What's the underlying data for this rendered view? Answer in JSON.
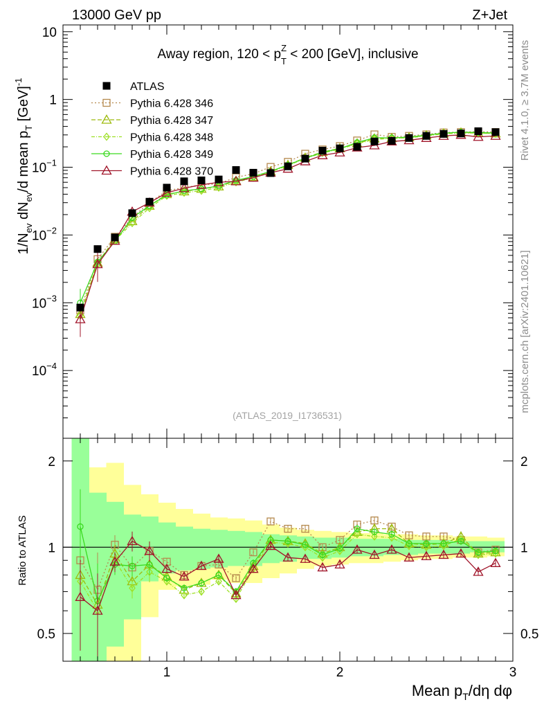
{
  "header": {
    "beam": "13000 GeV pp",
    "process": "Z+Jet",
    "analysis_id": "(ATLAS_2019_I1736531)",
    "rivet_label": "Rivet 4.1.0, ≥ 3.7M events",
    "site_label": "mcplots.cern.ch [arXiv:2401.10621]"
  },
  "chart_data": [
    {
      "id": "main",
      "type": "scatter",
      "title_parts": [
        "Away region, 120 < p",
        "Z",
        "T",
        " < 200 [GeV], inclusive"
      ],
      "ylabel_parts": [
        "1/N",
        "ev",
        " dN",
        "ev",
        "/d mean p",
        "T",
        " [GeV]",
        "-1"
      ],
      "xlim": [
        0.4,
        3.0
      ],
      "ylim_log10": [
        -5,
        1.1
      ],
      "yscale": "log",
      "y_ticks": [
        {
          "exp": 1,
          "label": "10"
        },
        {
          "exp": 0,
          "label": "1"
        },
        {
          "exp": -1,
          "base": "10",
          "sup": "−1"
        },
        {
          "exp": -2,
          "base": "10",
          "sup": "−2"
        },
        {
          "exp": -3,
          "base": "10",
          "sup": "−3"
        },
        {
          "exp": -4,
          "base": "10",
          "sup": "−4"
        }
      ],
      "legend_position": "top-left",
      "reference": {
        "name": "ATLAS",
        "color": "#000000",
        "x": [
          0.5,
          0.6,
          0.7,
          0.8,
          0.9,
          1.0,
          1.1,
          1.2,
          1.3,
          1.4,
          1.5,
          1.6,
          1.7,
          1.8,
          1.9,
          2.0,
          2.1,
          2.2,
          2.3,
          2.4,
          2.5,
          2.6,
          2.7,
          2.8,
          2.9
        ],
        "y": [
          0.00085,
          0.0062,
          0.0092,
          0.021,
          0.031,
          0.05,
          0.062,
          0.064,
          0.066,
          0.091,
          0.083,
          0.082,
          0.103,
          0.134,
          0.176,
          0.19,
          0.2,
          0.24,
          0.245,
          0.27,
          0.29,
          0.31,
          0.315,
          0.34,
          0.33
        ]
      },
      "series": [
        {
          "name": "Pythia 6.428 346",
          "color": "#b5894d",
          "marker": "square-open",
          "dash": "2,3",
          "values": [
            0.00077,
            0.0044,
            0.0094,
            0.018,
            0.03,
            0.045,
            0.05,
            0.055,
            0.057,
            0.071,
            0.08,
            0.101,
            0.12,
            0.158,
            0.183,
            0.205,
            0.248,
            0.305,
            0.28,
            0.29,
            0.305,
            0.325,
            0.33,
            0.335,
            0.33
          ]
        },
        {
          "name": "Pythia 6.428 347",
          "color": "#9dbb0e",
          "marker": "triangle-open",
          "dash": "6,3",
          "values": [
            0.00068,
            0.0039,
            0.0087,
            0.016,
            0.027,
            0.04,
            0.044,
            0.048,
            0.052,
            0.063,
            0.072,
            0.087,
            0.108,
            0.138,
            0.168,
            0.19,
            0.225,
            0.265,
            0.268,
            0.275,
            0.295,
            0.315,
            0.325,
            0.32,
            0.315
          ]
        },
        {
          "name": "Pythia 6.428 348",
          "color": "#9de024",
          "marker": "diamond-open",
          "dash": "5,2,1,2",
          "values": [
            0.00065,
            0.0037,
            0.0083,
            0.015,
            0.025,
            0.038,
            0.042,
            0.045,
            0.05,
            0.06,
            0.07,
            0.085,
            0.106,
            0.135,
            0.162,
            0.185,
            0.222,
            0.258,
            0.265,
            0.272,
            0.29,
            0.31,
            0.32,
            0.318,
            0.312
          ]
        },
        {
          "name": "Pythia 6.428 349",
          "color": "#3ada1f",
          "marker": "circle-open",
          "dash": "",
          "values": [
            0.001,
            0.004,
            0.008,
            0.018,
            0.027,
            0.039,
            0.045,
            0.048,
            0.053,
            0.064,
            0.073,
            0.087,
            0.108,
            0.136,
            0.166,
            0.188,
            0.232,
            0.272,
            0.272,
            0.278,
            0.298,
            0.318,
            0.33,
            0.325,
            0.32
          ]
        },
        {
          "name": "Pythia 6.428 370",
          "color": "#a0152a",
          "marker": "triangle-open",
          "dash": "",
          "values": [
            0.00057,
            0.0037,
            0.0082,
            0.022,
            0.03,
            0.042,
            0.049,
            0.055,
            0.06,
            0.062,
            0.07,
            0.083,
            0.095,
            0.122,
            0.15,
            0.165,
            0.195,
            0.21,
            0.24,
            0.25,
            0.27,
            0.29,
            0.3,
            0.28,
            0.29
          ]
        }
      ]
    },
    {
      "id": "ratio",
      "type": "line",
      "ylabel": "Ratio to ATLAS",
      "xlabel_parts": [
        "Mean p",
        "T",
        "/dη dφ"
      ],
      "xlim": [
        0.4,
        3.0
      ],
      "ylim": [
        0.4,
        2.4
      ],
      "yscale": "log",
      "x_ticks": [
        {
          "v": 1,
          "label": "1"
        },
        {
          "v": 2,
          "label": "2"
        },
        {
          "v": 3,
          "label": "3"
        }
      ],
      "y_ticks": [
        {
          "v": 2,
          "label": "2"
        },
        {
          "v": 1,
          "label": "1"
        },
        {
          "v": 0.5,
          "label": "0.5"
        }
      ],
      "bands": {
        "edges": [
          0.45,
          0.55,
          0.65,
          0.75,
          0.85,
          0.95,
          1.05,
          1.15,
          1.25,
          1.35,
          1.45,
          1.55,
          1.65,
          1.75,
          1.85,
          1.95,
          2.05,
          2.15,
          2.25,
          2.35,
          2.45,
          2.55,
          2.65,
          2.75,
          2.85,
          2.95
        ],
        "yellow_lo": [
          0.35,
          0.35,
          0.35,
          0.38,
          0.57,
          0.71,
          0.73,
          0.74,
          0.77,
          0.75,
          0.75,
          0.78,
          0.81,
          0.84,
          0.86,
          0.87,
          0.88,
          0.88,
          0.89,
          0.9,
          0.91,
          0.91,
          0.92,
          0.92,
          0.93
        ],
        "yellow_hi": [
          2.4,
          1.9,
          1.97,
          1.65,
          1.53,
          1.43,
          1.36,
          1.31,
          1.27,
          1.26,
          1.24,
          1.2,
          1.17,
          1.15,
          1.14,
          1.13,
          1.12,
          1.12,
          1.11,
          1.11,
          1.1,
          1.1,
          1.09,
          1.09,
          1.08
        ],
        "green_lo": [
          0.35,
          0.35,
          0.45,
          0.56,
          0.76,
          0.81,
          0.83,
          0.84,
          0.85,
          0.86,
          0.86,
          0.88,
          0.89,
          0.91,
          0.91,
          0.92,
          0.93,
          0.93,
          0.94,
          0.94,
          0.95,
          0.95,
          0.95,
          0.96,
          0.96
        ],
        "green_hi": [
          2.4,
          1.55,
          1.44,
          1.3,
          1.28,
          1.22,
          1.18,
          1.16,
          1.15,
          1.14,
          1.13,
          1.11,
          1.1,
          1.09,
          1.08,
          1.08,
          1.07,
          1.07,
          1.07,
          1.06,
          1.06,
          1.06,
          1.05,
          1.05,
          1.05
        ]
      },
      "series": [
        {
          "name": "Pythia 6.428 346",
          "values": [
            0.9,
            0.71,
            1.02,
            0.85,
            0.97,
            0.89,
            0.8,
            0.86,
            0.87,
            0.78,
            0.96,
            1.23,
            1.16,
            1.16,
            1.0,
            1.06,
            1.2,
            1.24,
            1.18,
            1.1,
            1.09,
            1.09,
            1.06,
            0.96,
            0.98
          ]
        },
        {
          "name": "Pythia 6.428 347",
          "values": [
            0.8,
            0.63,
            0.95,
            0.76,
            0.87,
            0.79,
            0.71,
            0.75,
            0.8,
            0.69,
            0.86,
            1.06,
            1.05,
            1.03,
            0.95,
            1.0,
            1.13,
            1.16,
            1.16,
            1.03,
            1.02,
            1.03,
            1.09,
            0.95,
            0.96
          ]
        },
        {
          "name": "Pythia 6.428 348",
          "values": [
            0.76,
            0.6,
            0.9,
            0.72,
            0.82,
            0.76,
            0.68,
            0.7,
            0.76,
            0.66,
            0.84,
            1.04,
            1.03,
            1.0,
            0.92,
            0.97,
            1.11,
            1.09,
            1.08,
            1.01,
            1.0,
            1.01,
            1.07,
            0.94,
            0.95
          ]
        },
        {
          "name": "Pythia 6.428 349",
          "values": [
            1.18,
            0.65,
            0.87,
            0.86,
            0.87,
            0.78,
            0.72,
            0.75,
            0.8,
            0.7,
            0.88,
            1.06,
            1.05,
            1.02,
            0.94,
            0.99,
            1.16,
            1.13,
            1.11,
            1.03,
            1.03,
            1.03,
            1.05,
            0.96,
            0.97
          ]
        },
        {
          "name": "Pythia 6.428 370",
          "values": [
            0.67,
            0.6,
            0.89,
            1.05,
            0.97,
            0.84,
            0.79,
            0.86,
            0.91,
            0.68,
            0.84,
            1.01,
            0.92,
            0.91,
            0.85,
            0.87,
            0.98,
            0.94,
            0.98,
            0.92,
            0.93,
            0.94,
            0.95,
            0.82,
            0.88
          ]
        }
      ]
    }
  ]
}
